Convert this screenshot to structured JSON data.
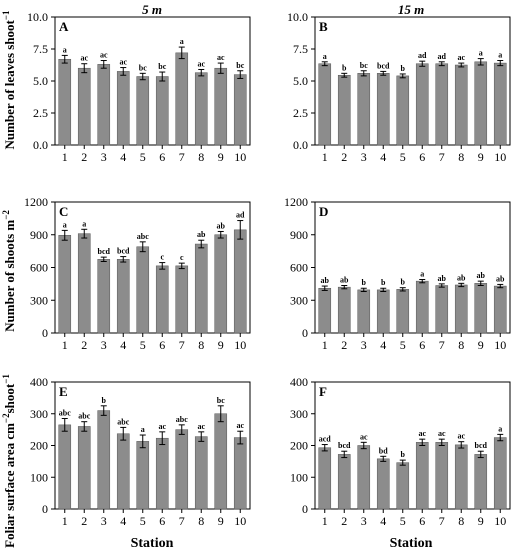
{
  "column_titles": [
    "5 m",
    "15 m"
  ],
  "x_axis_label": "Station",
  "row_labels": {
    "leaves": [
      "Number of leaves shoot",
      "−1"
    ],
    "shoots": [
      "Number of shoots m",
      "−2"
    ],
    "area": [
      "Foliar surface area cm",
      "−2",
      "shoot",
      "−1"
    ]
  },
  "colors": {
    "bar": "#8c8c8c",
    "axis": "#000000"
  },
  "chart_data": [
    {
      "type": "bar",
      "panel": "A",
      "column": "5 m",
      "row": "leaves",
      "categories": [
        "1",
        "2",
        "3",
        "4",
        "5",
        "6",
        "7",
        "8",
        "9",
        "10"
      ],
      "values": [
        6.7,
        6.0,
        6.3,
        5.75,
        5.35,
        5.35,
        7.2,
        5.65,
        6.0,
        5.5
      ],
      "errors": [
        0.3,
        0.35,
        0.3,
        0.3,
        0.25,
        0.35,
        0.45,
        0.25,
        0.4,
        0.3
      ],
      "labels": [
        "a",
        "ac",
        "ac",
        "ac",
        "bc",
        "bc",
        "a",
        "ac",
        "ac",
        "bc"
      ],
      "ylim": [
        0,
        10
      ],
      "yticks": [
        "0.0",
        "2.5",
        "5.0",
        "7.5",
        "10.0"
      ]
    },
    {
      "type": "bar",
      "panel": "B",
      "column": "15 m",
      "row": "leaves",
      "categories": [
        "1",
        "2",
        "3",
        "4",
        "5",
        "6",
        "7",
        "8",
        "9",
        "10"
      ],
      "values": [
        6.35,
        5.45,
        5.6,
        5.6,
        5.4,
        6.35,
        6.35,
        6.25,
        6.5,
        6.4
      ],
      "errors": [
        0.15,
        0.15,
        0.2,
        0.15,
        0.15,
        0.2,
        0.15,
        0.15,
        0.25,
        0.2
      ],
      "labels": [
        "a",
        "b",
        "bc",
        "bcd",
        "b",
        "ad",
        "ad",
        "ac",
        "a",
        "a"
      ],
      "ylim": [
        0,
        10
      ],
      "yticks": [
        "0.0",
        "2.5",
        "5.0",
        "7.5",
        "10.0"
      ]
    },
    {
      "type": "bar",
      "panel": "C",
      "column": "5 m",
      "row": "shoots",
      "categories": [
        "1",
        "2",
        "3",
        "4",
        "5",
        "6",
        "7",
        "8",
        "9",
        "10"
      ],
      "values": [
        895,
        910,
        675,
        675,
        790,
        615,
        615,
        815,
        900,
        945
      ],
      "errors": [
        45,
        40,
        20,
        25,
        45,
        30,
        25,
        35,
        30,
        85
      ],
      "labels": [
        "a",
        "a",
        "bcd",
        "bcd",
        "abc",
        "c",
        "c",
        "ab",
        "ab",
        "ad"
      ],
      "ylim": [
        0,
        1200
      ],
      "yticks": [
        "0",
        "300",
        "600",
        "900",
        "1200"
      ]
    },
    {
      "type": "bar",
      "panel": "D",
      "column": "15 m",
      "row": "shoots",
      "categories": [
        "1",
        "2",
        "3",
        "4",
        "5",
        "6",
        "7",
        "8",
        "9",
        "10"
      ],
      "values": [
        410,
        420,
        395,
        395,
        400,
        475,
        435,
        440,
        455,
        430
      ],
      "errors": [
        20,
        15,
        15,
        15,
        15,
        15,
        15,
        15,
        20,
        15
      ],
      "labels": [
        "ab",
        "ab",
        "b",
        "b",
        "b",
        "a",
        "ab",
        "ab",
        "ab",
        "ab"
      ],
      "ylim": [
        0,
        1200
      ],
      "yticks": [
        "0",
        "300",
        "600",
        "900",
        "1200"
      ]
    },
    {
      "type": "bar",
      "panel": "E",
      "column": "5 m",
      "row": "area",
      "categories": [
        "1",
        "2",
        "3",
        "4",
        "5",
        "6",
        "7",
        "8",
        "9",
        "10"
      ],
      "values": [
        265,
        260,
        310,
        237,
        213,
        223,
        250,
        228,
        300,
        225
      ],
      "errors": [
        20,
        15,
        15,
        20,
        20,
        20,
        15,
        15,
        25,
        20
      ],
      "labels": [
        "abc",
        "abc",
        "b",
        "abc",
        "a",
        "ac",
        "abc",
        "ac",
        "bc",
        "ac"
      ],
      "ylim": [
        0,
        400
      ],
      "yticks": [
        "0",
        "100",
        "200",
        "300",
        "400"
      ]
    },
    {
      "type": "bar",
      "panel": "F",
      "column": "15 m",
      "row": "area",
      "categories": [
        "1",
        "2",
        "3",
        "4",
        "5",
        "6",
        "7",
        "8",
        "9",
        "10"
      ],
      "values": [
        193,
        172,
        200,
        158,
        146,
        210,
        210,
        202,
        172,
        225
      ],
      "errors": [
        10,
        10,
        10,
        8,
        8,
        10,
        10,
        10,
        10,
        10
      ],
      "labels": [
        "acd",
        "bcd",
        "ac",
        "bd",
        "b",
        "ac",
        "ac",
        "ac",
        "bcd",
        "a"
      ],
      "ylim": [
        0,
        400
      ],
      "yticks": [
        "0",
        "100",
        "200",
        "300",
        "400"
      ]
    }
  ]
}
